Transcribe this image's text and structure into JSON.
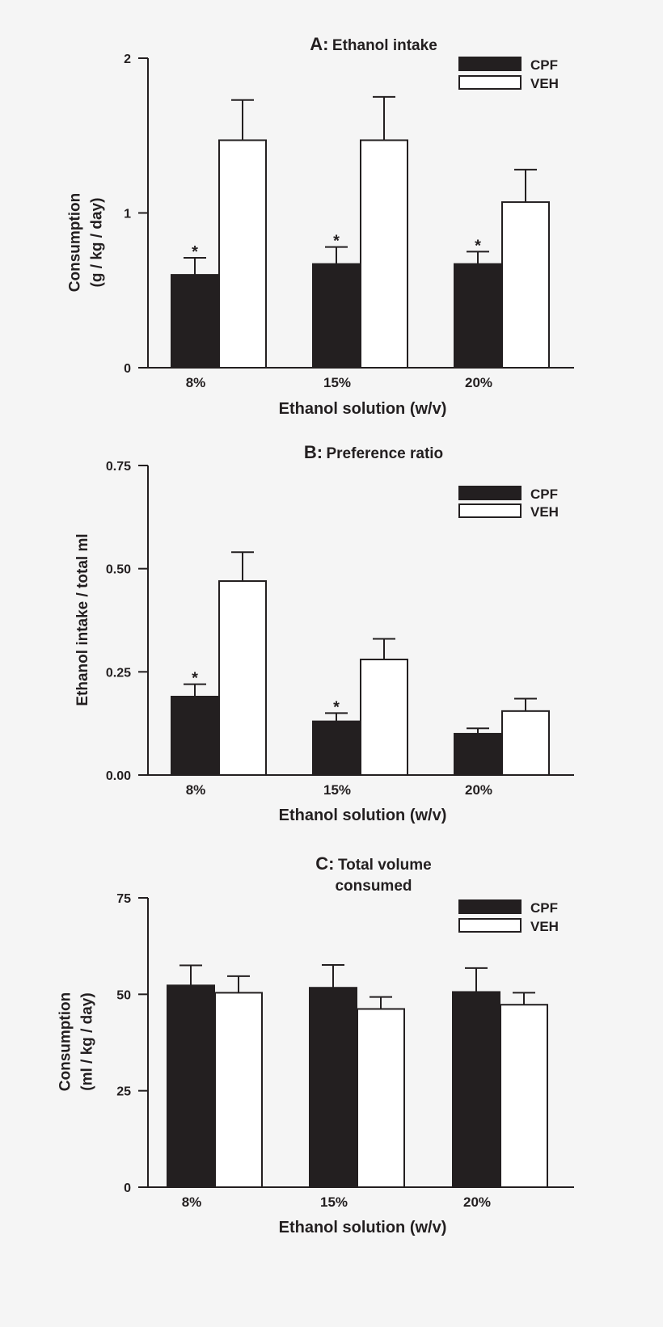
{
  "chart_data": [
    {
      "type": "bar",
      "panel": "A:",
      "title": [
        "Ethanol intake"
      ],
      "categories": [
        "8%",
        "15%",
        "20%"
      ],
      "series": [
        {
          "name": "CPF",
          "values": [
            0.6,
            0.67,
            0.67
          ],
          "errors": [
            0.11,
            0.11,
            0.08
          ],
          "significant": [
            true,
            true,
            true
          ]
        },
        {
          "name": "VEH",
          "values": [
            1.47,
            1.47,
            1.07
          ],
          "errors": [
            0.26,
            0.28,
            0.21
          ],
          "significant": [
            false,
            false,
            false
          ]
        }
      ],
      "ylim": [
        0,
        2
      ],
      "yticks": [
        0,
        1,
        2
      ],
      "ytick_labels": [
        "0",
        "1",
        "2"
      ],
      "xlabel": "Ethanol solution (w/v)",
      "ylabel": [
        "Consumption",
        "(g / kg / day)"
      ],
      "sig_marker": "*",
      "legend_position": "top-right"
    },
    {
      "type": "bar",
      "panel": "B:",
      "title": [
        "Preference ratio"
      ],
      "categories": [
        "8%",
        "15%",
        "20%"
      ],
      "series": [
        {
          "name": "CPF",
          "values": [
            0.19,
            0.13,
            0.1
          ],
          "errors": [
            0.03,
            0.02,
            0.013
          ],
          "significant": [
            true,
            true,
            false
          ]
        },
        {
          "name": "VEH",
          "values": [
            0.47,
            0.28,
            0.155
          ],
          "errors": [
            0.07,
            0.05,
            0.03
          ],
          "significant": [
            false,
            false,
            false
          ]
        }
      ],
      "ylim": [
        0,
        0.75
      ],
      "yticks": [
        0,
        0.25,
        0.5,
        0.75
      ],
      "ytick_labels": [
        "0.00",
        "0.25",
        "0.50",
        "0.75"
      ],
      "xlabel": "Ethanol solution (w/v)",
      "ylabel": [
        "Ethanol intake / total ml"
      ],
      "sig_marker": "*",
      "legend_position": "top-right"
    },
    {
      "type": "bar",
      "panel": "C:",
      "title": [
        "Total volume",
        "consumed"
      ],
      "categories": [
        "8%",
        "15%",
        "20%"
      ],
      "series": [
        {
          "name": "CPF",
          "values": [
            52.3,
            51.7,
            50.6
          ],
          "errors": [
            5.2,
            5.9,
            6.2
          ],
          "significant": [
            false,
            false,
            false
          ]
        },
        {
          "name": "VEH",
          "values": [
            50.4,
            46.2,
            47.3
          ],
          "errors": [
            4.3,
            3.1,
            3.1
          ],
          "significant": [
            false,
            false,
            false
          ]
        }
      ],
      "ylim": [
        0,
        75
      ],
      "yticks": [
        0,
        25,
        50,
        75
      ],
      "ytick_labels": [
        "0",
        "25",
        "50",
        "75"
      ],
      "xlabel": "Ethanol solution (w/v)",
      "ylabel": [
        "Consumption",
        "(ml / kg / day)"
      ],
      "sig_marker": "*",
      "legend_position": "top-right"
    }
  ],
  "colors": {
    "cpf": "#231f20",
    "veh": "#ffffff",
    "axis": "#231f20",
    "background": "#f5f5f5"
  }
}
